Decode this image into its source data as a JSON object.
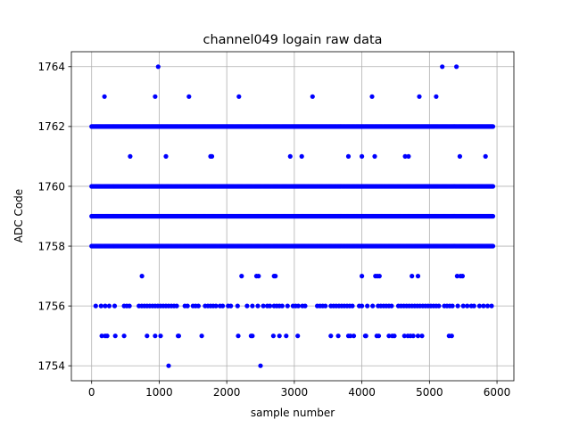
{
  "chart_data": {
    "type": "scatter",
    "title": "channel049 logain raw data",
    "xlabel": "sample number",
    "ylabel": "ADC Code",
    "xlim": [
      -300,
      6250
    ],
    "ylim": [
      1753.5,
      1764.5
    ],
    "x_ticks": [
      0,
      1000,
      2000,
      3000,
      4000,
      5000,
      6000
    ],
    "y_ticks": [
      1754,
      1756,
      1758,
      1760,
      1762,
      1764
    ],
    "grid": true,
    "marker_color": "#0000ff",
    "sample_count": 6000,
    "dense_levels": [
      {
        "y": 1758,
        "x_start": 0,
        "x_end": 5950
      },
      {
        "y": 1759,
        "x_start": 0,
        "x_end": 5950
      },
      {
        "y": 1760,
        "x_start": 0,
        "x_end": 5950
      },
      {
        "y": 1762,
        "x_start": 0,
        "x_end": 5950
      }
    ],
    "sparse_points": {
      "1764": [
        985,
        5190,
        5400
      ],
      "1763": [
        190,
        940,
        1440,
        2180,
        3270,
        4150,
        4850,
        5100
      ],
      "1761": [
        570,
        1100,
        1760,
        1780,
        2940,
        3110,
        3800,
        4000,
        4190,
        4640,
        4690,
        5450,
        5830
      ],
      "1757": [
        745,
        2220,
        2440,
        2470,
        2700,
        2720,
        4000,
        4200,
        4230,
        4260,
        4740,
        4830,
        5410,
        5460,
        5490
      ],
      "1756": [
        60,
        140,
        200,
        260,
        340,
        480,
        520,
        560,
        700,
        740,
        780,
        820,
        860,
        900,
        940,
        980,
        1020,
        1060,
        1100,
        1140,
        1180,
        1220,
        1260,
        1380,
        1420,
        1500,
        1540,
        1580,
        1680,
        1720,
        1760,
        1800,
        1840,
        1900,
        1940,
        2020,
        2060,
        2160,
        2300,
        2380,
        2460,
        2540,
        2600,
        2640,
        2700,
        2740,
        2780,
        2820,
        2900,
        2980,
        3020,
        3060,
        3120,
        3160,
        3340,
        3380,
        3420,
        3460,
        3540,
        3580,
        3620,
        3660,
        3700,
        3740,
        3780,
        3820,
        3860,
        3960,
        4000,
        4080,
        4160,
        4240,
        4280,
        4320,
        4360,
        4400,
        4440,
        4540,
        4580,
        4620,
        4660,
        4700,
        4740,
        4780,
        4820,
        4860,
        4900,
        4940,
        4980,
        5020,
        5060,
        5100,
        5140,
        5220,
        5260,
        5300,
        5340,
        5420,
        5500,
        5560,
        5620,
        5660,
        5740,
        5800,
        5860,
        5920
      ],
      "1755": [
        150,
        200,
        230,
        350,
        480,
        820,
        940,
        1020,
        1280,
        1290,
        1630,
        2170,
        2360,
        2380,
        2690,
        2780,
        2880,
        3050,
        3540,
        3650,
        3800,
        3830,
        3880,
        4050,
        4060,
        4220,
        4250,
        4400,
        4450,
        4480,
        4630,
        4680,
        4720,
        4760,
        4830,
        4890,
        5290,
        5330
      ],
      "1754": [
        1140,
        2500
      ]
    }
  }
}
